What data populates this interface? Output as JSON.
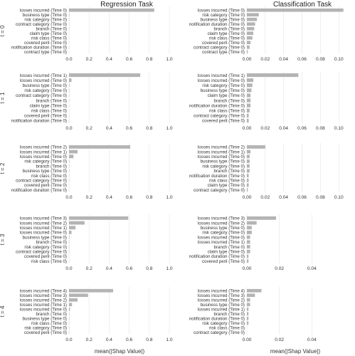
{
  "figure": {
    "column_titles": [
      "Regression Task",
      "Classification Task"
    ],
    "row_labels": [
      "t = 0",
      "t = 1",
      "t = 2",
      "t = 3",
      "t = 4"
    ],
    "xlabel": "mean(|Shap Value|)"
  },
  "colors": {
    "bar": "#b4b4b4",
    "grid": "#e4e4e4",
    "axis_line": "#cccccc",
    "text": "#333333",
    "title": "#222222"
  },
  "chart_data": [
    {
      "type": "bar",
      "orientation": "horizontal",
      "task": "Regression Task",
      "t": 0,
      "xlim": [
        0,
        1.0
      ],
      "xticks": [
        "0.0",
        "0.2",
        "0.4",
        "0.6",
        "0.8",
        "1.0"
      ],
      "categories": [
        "losses incurred (Time 0)",
        "business type (Time 0)",
        "risk category (Time 0)",
        "contract category (Time 0)",
        "branch (Time 0)",
        "claim type (Time 0)",
        "risk class (Time 0)",
        "covered peril (Time 0)",
        "notification duration (Time 0)",
        "contract type (Time 0)"
      ],
      "values": [
        0.85,
        0.004,
        0.003,
        0.002,
        0.002,
        0.001,
        0.001,
        0.001,
        0.001,
        0.0
      ]
    },
    {
      "type": "bar",
      "orientation": "horizontal",
      "task": "Classification Task",
      "t": 0,
      "xlim": [
        0,
        0.106
      ],
      "xticks": [
        "0.00",
        "0.02",
        "0.04",
        "0.06",
        "0.08",
        "0.10"
      ],
      "categories": [
        "losses incurred (Time 0)",
        "risk category (Time 0)",
        "business type (Time 0)",
        "notification duration (Time 0)",
        "branch (Time 0)",
        "claim type (Time 0)",
        "risk class (Time 0)",
        "covered peril (Time 0)",
        "contract category (Time 0)",
        "contract type (Time 0)"
      ],
      "values": [
        0.105,
        0.013,
        0.011,
        0.009,
        0.008,
        0.007,
        0.006,
        0.004,
        0.003,
        0.001
      ]
    },
    {
      "type": "bar",
      "orientation": "horizontal",
      "task": "Regression Task",
      "t": 1,
      "xlim": [
        0,
        1.0
      ],
      "xticks": [
        "0.0",
        "0.2",
        "0.4",
        "0.6",
        "0.8",
        "1.0"
      ],
      "categories": [
        "losses incurred (Time 1)",
        "losses incurred (Time 0)",
        "business type (Time 0)",
        "risk category (Time 0)",
        "contract category (Time 0)",
        "branch (Time 0)",
        "claim type (Time 0)",
        "risk class (Time 0)",
        "covered peril (Time 0)",
        "notification duration (Time 0)"
      ],
      "values": [
        0.71,
        0.025,
        0.004,
        0.003,
        0.002,
        0.002,
        0.001,
        0.001,
        0.001,
        0.001
      ]
    },
    {
      "type": "bar",
      "orientation": "horizontal",
      "task": "Classification Task",
      "t": 1,
      "xlim": [
        0,
        0.106
      ],
      "xticks": [
        "0.00",
        "0.02",
        "0.04",
        "0.06",
        "0.08",
        "0.10"
      ],
      "categories": [
        "losses incurred (Time 1)",
        "losses incurred (Time 0)",
        "risk category (Time 0)",
        "business type (Time 0)",
        "claim type (Time 0)",
        "branch (Time 0)",
        "notification duration (Time 0)",
        "risk class (Time 0)",
        "contract category (Time 0)",
        "covered peril (Time 0)"
      ],
      "values": [
        0.056,
        0.007,
        0.006,
        0.005,
        0.004,
        0.004,
        0.004,
        0.003,
        0.002,
        0.002
      ]
    },
    {
      "type": "bar",
      "orientation": "horizontal",
      "task": "Regression Task",
      "t": 2,
      "xlim": [
        0,
        1.0
      ],
      "xticks": [
        "0.0",
        "0.2",
        "0.4",
        "0.6",
        "0.8",
        "1.0"
      ],
      "categories": [
        "losses incurred (Time 2)",
        "losses incurred (Time 1)",
        "losses incurred (Time 0)",
        "risk category (Time 0)",
        "branch (Time 0)",
        "business type (Time 0)",
        "risk class (Time 0)",
        "contract category (Time 0)",
        "covered peril (Time 0)",
        "notification duration (Time 0)"
      ],
      "values": [
        0.61,
        0.085,
        0.045,
        0.004,
        0.003,
        0.003,
        0.002,
        0.002,
        0.001,
        0.001
      ]
    },
    {
      "type": "bar",
      "orientation": "horizontal",
      "task": "Classification Task",
      "t": 2,
      "xlim": [
        0,
        0.106
      ],
      "xticks": [
        "0.00",
        "0.02",
        "0.04",
        "0.06",
        "0.08",
        "0.10"
      ],
      "categories": [
        "losses incurred (Time 2)",
        "losses incurred (Time 1)",
        "losses incurred (Time 0)",
        "business type (Time 0)",
        "risk category (Time 0)",
        "branch (Time 0)",
        "notification duration (Time 0)",
        "risk class (Time 0)",
        "claim type (Time 0)",
        "contract category (Time 0)"
      ],
      "values": [
        0.02,
        0.004,
        0.003,
        0.003,
        0.003,
        0.003,
        0.002,
        0.002,
        0.002,
        0.001
      ]
    },
    {
      "type": "bar",
      "orientation": "horizontal",
      "task": "Regression Task",
      "t": 3,
      "xlim": [
        0,
        1.0
      ],
      "xticks": [
        "0.0",
        "0.2",
        "0.4",
        "0.6",
        "0.8",
        "1.0"
      ],
      "categories": [
        "losses incurred (Time 3)",
        "losses incurred (Time 2)",
        "losses incurred (Time 1)",
        "losses incurred (Time 0)",
        "business type (Time 0)",
        "branch (Time 0)",
        "risk category (Time 0)",
        "contract category (Time 0)",
        "covered peril (Time 0)",
        "risk class (Time 0)"
      ],
      "values": [
        0.59,
        0.155,
        0.065,
        0.025,
        0.004,
        0.003,
        0.003,
        0.002,
        0.001,
        0.001
      ]
    },
    {
      "type": "bar",
      "orientation": "horizontal",
      "task": "Classification Task",
      "t": 3,
      "xlim": [
        0,
        0.06
      ],
      "xticks": [
        "0.00",
        "0.02",
        "0.04"
      ],
      "categories": [
        "losses incurred (Time 3)",
        "losses incurred (Time 2)",
        "business type (Time 0)",
        "risk category (Time 0)",
        "losses incurred (Time 0)",
        "losses incurred (Time 1)",
        "branch (Time 0)",
        "claim type (Time 0)",
        "notification duration (Time 0)",
        "covered peril (Time 0)"
      ],
      "values": [
        0.018,
        0.006,
        0.003,
        0.003,
        0.002,
        0.002,
        0.002,
        0.002,
        0.001,
        0.001
      ]
    },
    {
      "type": "bar",
      "orientation": "horizontal",
      "task": "Regression Task",
      "t": 4,
      "xlim": [
        0,
        1.0
      ],
      "xticks": [
        "0.0",
        "0.2",
        "0.4",
        "0.6",
        "0.8",
        "1.0"
      ],
      "categories": [
        "losses incurred (Time 4)",
        "losses incurred (Time 3)",
        "losses incurred (Time 2)",
        "losses incurred (Time 1)",
        "losses incurred (Time 0)",
        "branch (Time 0)",
        "business type (Time 0)",
        "risk class (Time 0)",
        "risk category (Time 0)",
        "covered peril (Time 0)"
      ],
      "values": [
        0.44,
        0.19,
        0.085,
        0.03,
        0.01,
        0.003,
        0.003,
        0.002,
        0.002,
        0.001
      ]
    },
    {
      "type": "bar",
      "orientation": "horizontal",
      "task": "Classification Task",
      "t": 4,
      "xlim": [
        0,
        0.06
      ],
      "xticks": [
        "0.00",
        "0.02",
        "0.04"
      ],
      "categories": [
        "losses incurred (Time 4)",
        "losses incurred (Time 3)",
        "losses incurred (Time 2)",
        "business type (Time 0)",
        "losses incurred (Time 1)",
        "branch (Time 0)",
        "notification duration (Time 0)",
        "risk category (Time 0)",
        "risk class (Time 0)",
        "contract category (Time 0)"
      ],
      "values": [
        0.009,
        0.005,
        0.002,
        0.002,
        0.001,
        0.001,
        0.001,
        0.001,
        0.0,
        0.0
      ]
    }
  ]
}
